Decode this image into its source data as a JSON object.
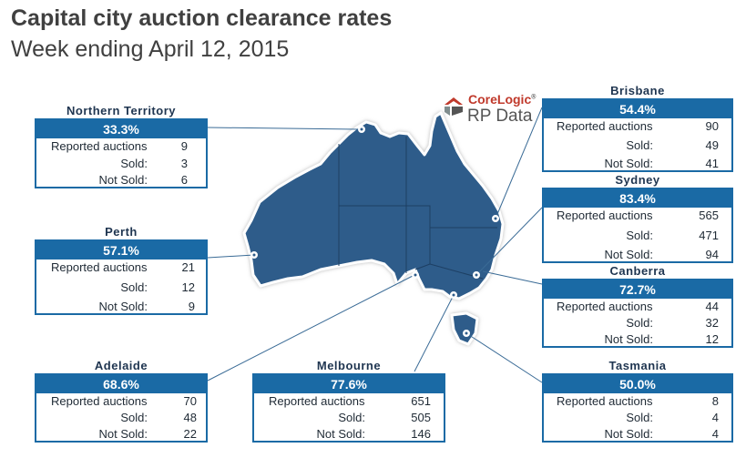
{
  "title": "Capital city auction clearance rates",
  "subtitle": "Week ending April 12, 2015",
  "logo": {
    "brand": "CoreLogic",
    "brand_mark": "®",
    "product": "RP Data"
  },
  "colors": {
    "map_fill": "#2e5c8a",
    "map_outline": "#ffffff",
    "box_header": "#1a6aa5",
    "title_text": "#404040"
  },
  "labels": {
    "reported": "Reported auctions",
    "sold": "Sold:",
    "not_sold": "Not Sold:"
  },
  "cities": {
    "northern_territory": {
      "name": "Northern Territory",
      "rate": "33.3%",
      "reported": "9",
      "sold": "3",
      "not_sold": "6"
    },
    "perth": {
      "name": "Perth",
      "rate": "57.1%",
      "reported": "21",
      "sold": "12",
      "not_sold": "9"
    },
    "adelaide": {
      "name": "Adelaide",
      "rate": "68.6%",
      "reported": "70",
      "sold": "48",
      "not_sold": "22"
    },
    "melbourne": {
      "name": "Melbourne",
      "rate": "77.6%",
      "reported": "651",
      "sold": "505",
      "not_sold": "146"
    },
    "brisbane": {
      "name": "Brisbane",
      "rate": "54.4%",
      "reported": "90",
      "sold": "49",
      "not_sold": "41"
    },
    "sydney": {
      "name": "Sydney",
      "rate": "83.4%",
      "reported": "565",
      "sold": "471",
      "not_sold": "94"
    },
    "canberra": {
      "name": "Canberra",
      "rate": "72.7%",
      "reported": "44",
      "sold": "32",
      "not_sold": "12"
    },
    "tasmania": {
      "name": "Tasmania",
      "rate": "50.0%",
      "reported": "8",
      "sold": "4",
      "not_sold": "4"
    }
  }
}
